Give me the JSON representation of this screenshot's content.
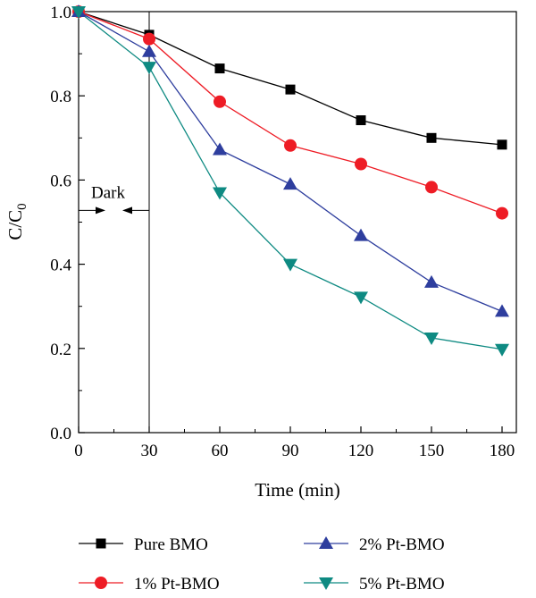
{
  "chart_data": {
    "type": "line",
    "xlabel": "Time (min)",
    "ylabel_main": "C/C",
    "ylabel_sub": "0",
    "xlim": [
      0,
      180
    ],
    "ylim": [
      0.0,
      1.0
    ],
    "x_ticks": [
      0,
      30,
      60,
      90,
      120,
      150,
      180
    ],
    "y_ticks": [
      "0.0",
      "0.2",
      "0.4",
      "0.6",
      "0.8",
      "1.0"
    ],
    "x": [
      0,
      30,
      60,
      90,
      120,
      150,
      180
    ],
    "grid": false,
    "legend_position": "bottom",
    "annotation": {
      "text": "Dark",
      "dark_line_x": 30,
      "arrow_y": 0.53
    },
    "series": [
      {
        "name": "Pure BMO",
        "color": "#000000",
        "marker": "square",
        "values": [
          1.0,
          0.945,
          0.865,
          0.815,
          0.742,
          0.7,
          0.684
        ]
      },
      {
        "name": "1% Pt-BMO",
        "color": "#ee1c25",
        "marker": "circle",
        "values": [
          1.0,
          0.935,
          0.786,
          0.682,
          0.638,
          0.583,
          0.521
        ]
      },
      {
        "name": "2% Pt-BMO",
        "color": "#2e3e9e",
        "marker": "triangle-up",
        "values": [
          1.0,
          0.905,
          0.672,
          0.59,
          0.468,
          0.357,
          0.288
        ]
      },
      {
        "name": "5% Pt-BMO",
        "color": "#0e8a82",
        "marker": "triangle-down",
        "values": [
          1.0,
          0.868,
          0.57,
          0.4,
          0.322,
          0.225,
          0.198
        ]
      }
    ]
  }
}
